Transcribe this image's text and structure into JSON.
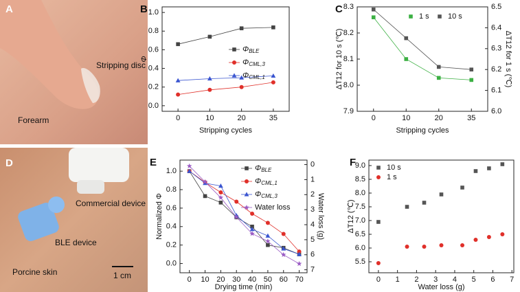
{
  "photos": {
    "top": {
      "letter": "A",
      "labels": [
        "Stripping disc",
        "Forearm"
      ]
    },
    "bottom": {
      "letter": "D",
      "labels": [
        "Commercial device",
        "BLE device",
        "Porcine skin"
      ],
      "scale": "1 cm"
    }
  },
  "chart_data": [
    {
      "panel": "B",
      "type": "line",
      "xlabel": "Stripping cycles",
      "ylabel": "Φ",
      "categories": [
        "0",
        "10",
        "20",
        "35"
      ],
      "ylim": [
        -0.06,
        1.06
      ],
      "yticks": [
        {
          "value": 0,
          "label": "0.0"
        },
        0.2,
        0.4,
        0.6,
        0.8,
        {
          "value": 1,
          "label": "1.0"
        }
      ],
      "legend": "right",
      "series": [
        {
          "name": "ΦBLE",
          "color": "#444444",
          "marker": "square",
          "values": [
            0.66,
            0.74,
            0.83,
            0.84
          ]
        },
        {
          "name": "ΦCML,3",
          "color": "#e0302a",
          "marker": "circle",
          "values": [
            0.12,
            0.17,
            0.2,
            0.25
          ]
        },
        {
          "name": "ΦCML,1",
          "color": "#3a55d0",
          "marker": "triangle",
          "values": [
            0.27,
            0.29,
            0.3,
            0.32
          ]
        }
      ]
    },
    {
      "panel": "C",
      "type": "line",
      "xlabel": "Stripping cycles",
      "ylabel": "ΔT12 for 10 s (℃)",
      "y2label": "ΔT12 for 1 s (℃)",
      "categories": [
        "0",
        "10",
        "20",
        "35"
      ],
      "ylim": [
        7.9,
        8.3
      ],
      "yticks": [
        7.9,
        {
          "value": 8,
          "label": "8.0"
        },
        8.1,
        8.2,
        8.3
      ],
      "y2lim": [
        6,
        6.5
      ],
      "y2ticks": [
        {
          "value": 6,
          "label": "6.0"
        },
        6.1,
        6.2,
        6.3,
        6.4,
        6.5
      ],
      "legend": "top",
      "series": [
        {
          "name": "1 s",
          "color": "#3cb043",
          "marker": "square",
          "axis": "y2",
          "values": [
            6.45,
            6.25,
            6.16,
            6.15
          ]
        },
        {
          "name": "10 s",
          "color": "#555555",
          "marker": "square",
          "values": [
            8.29,
            8.18,
            8.07,
            8.06
          ]
        }
      ]
    },
    {
      "panel": "E",
      "type": "line",
      "xlabel": "Drying time (min)",
      "ylabel": "Normalized Φ",
      "y2label": "Water loss (g)",
      "x": [
        0,
        10,
        20,
        30,
        40,
        50,
        60,
        70
      ],
      "xlim": [
        -6,
        75
      ],
      "xticks": [
        0,
        10,
        20,
        30,
        40,
        50,
        60,
        70
      ],
      "ylim": [
        -0.1,
        1.12
      ],
      "yticks": [
        {
          "value": 0,
          "label": "0.0"
        },
        0.2,
        0.4,
        0.6,
        0.8,
        {
          "value": 1,
          "label": "1.0"
        }
      ],
      "y2lim": [
        7.2,
        -0.3
      ],
      "y2ticks": [
        0,
        1,
        2,
        3,
        4,
        5,
        6,
        7
      ],
      "legend": "upper right",
      "series": [
        {
          "name": "ΦBLE",
          "color": "#444444",
          "marker": "square",
          "values": [
            1.0,
            0.73,
            0.66,
            0.5,
            0.4,
            0.2,
            0.17,
            0.1
          ]
        },
        {
          "name": "ΦCML,1",
          "color": "#e0302a",
          "marker": "circle",
          "values": [
            1.0,
            0.88,
            0.77,
            0.67,
            0.54,
            0.44,
            0.32,
            0.13
          ]
        },
        {
          "name": "ΦCML,3",
          "color": "#3a55d0",
          "marker": "triangle",
          "values": [
            1.0,
            0.87,
            0.84,
            0.52,
            0.37,
            0.3,
            0.16,
            0.1
          ]
        },
        {
          "name": "Water loss",
          "color": "#9a5bc4",
          "marker": "star",
          "axis": "y2",
          "values": [
            0.1,
            1.15,
            2.2,
            3.5,
            4.6,
            5.1,
            6.0,
            6.6
          ]
        }
      ]
    },
    {
      "panel": "F",
      "type": "scatter",
      "xlabel": "Water loss (g)",
      "ylabel": "ΔT12 (℃)",
      "x": [
        0,
        1.5,
        2.4,
        3.3,
        4.4,
        5.1,
        5.8,
        6.5
      ],
      "xlim": [
        -0.5,
        7.1
      ],
      "xticks": [
        0,
        1,
        2,
        3,
        4,
        5,
        6,
        7
      ],
      "ylim": [
        5.1,
        9.2
      ],
      "yticks": [
        5.5,
        {
          "value": 6,
          "label": "6.0"
        },
        6.5,
        {
          "value": 7,
          "label": "7.0"
        },
        7.5,
        {
          "value": 8,
          "label": "8.0"
        },
        8.5,
        {
          "value": 9,
          "label": "9.0"
        }
      ],
      "legend": "upper left",
      "series": [
        {
          "name": "10 s",
          "color": "#555555",
          "marker": "square",
          "values": [
            6.95,
            7.5,
            7.65,
            7.95,
            8.2,
            8.8,
            8.9,
            9.05
          ]
        },
        {
          "name": "1 s",
          "color": "#e0302a",
          "marker": "circle",
          "values": [
            5.45,
            6.05,
            6.05,
            6.1,
            6.1,
            6.3,
            6.4,
            6.5
          ]
        }
      ]
    }
  ]
}
